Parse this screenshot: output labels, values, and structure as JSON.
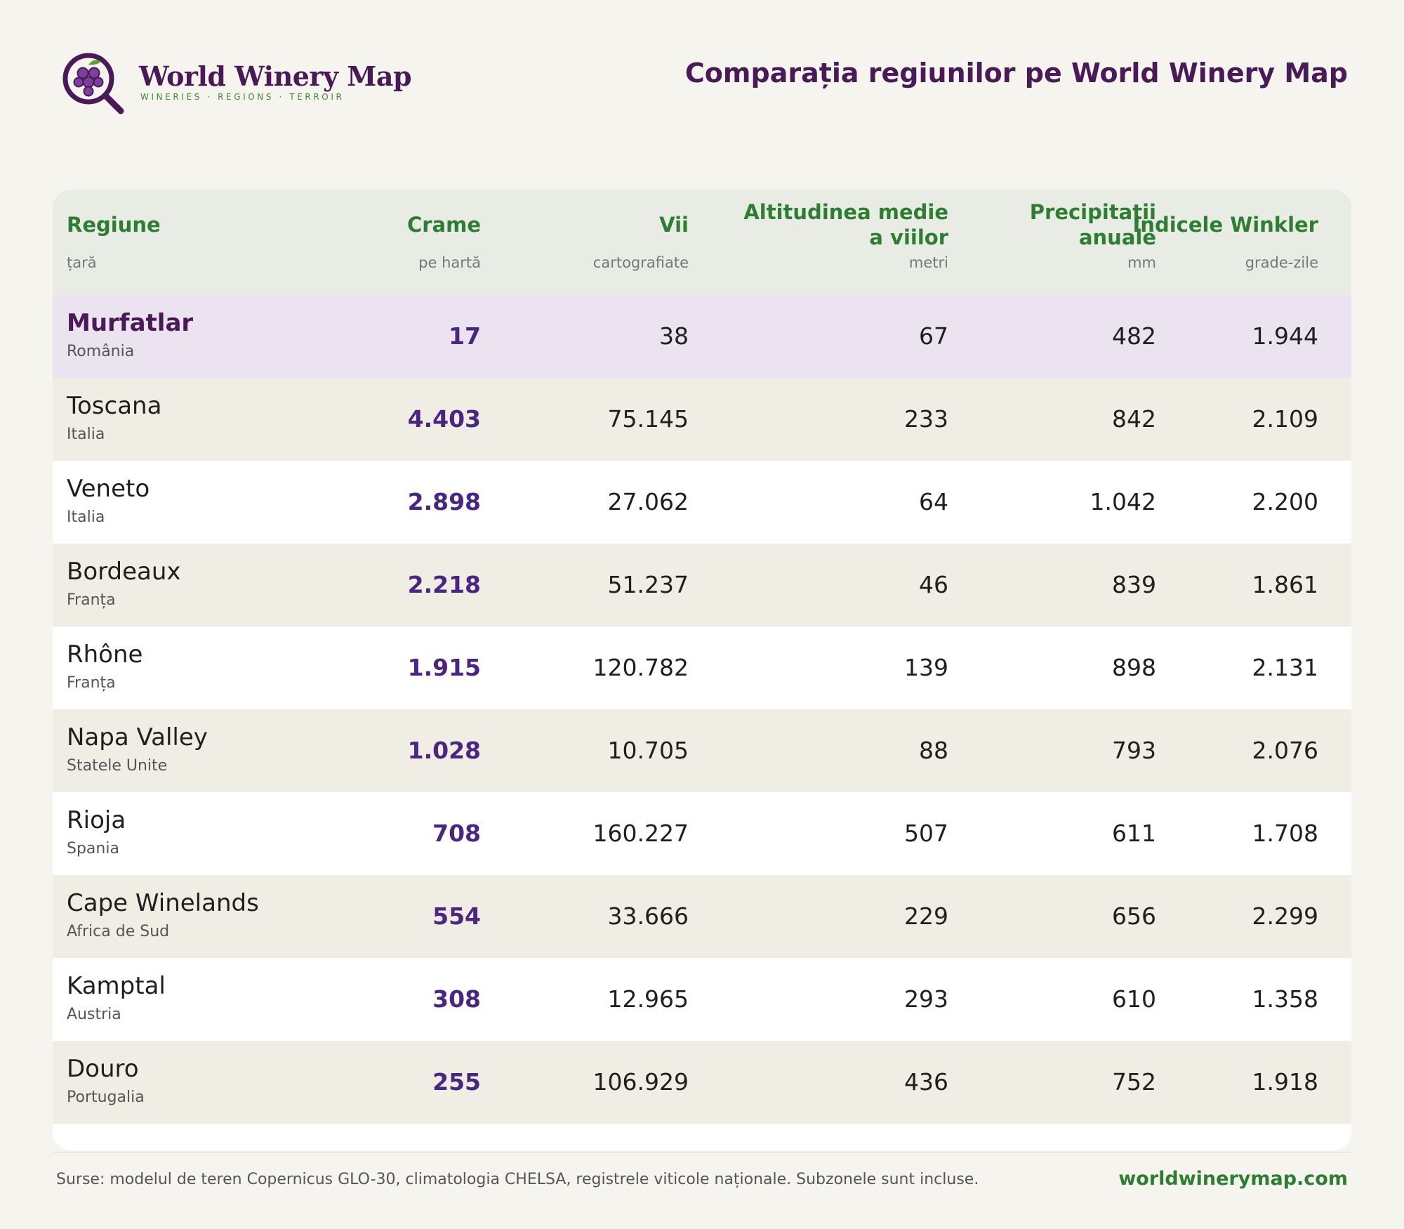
{
  "brand": {
    "name": "World Winery Map",
    "tagline": "WINERIES · REGIONS · TERROIR"
  },
  "title": "Comparația regiunilor pe World Winery Map",
  "colors": {
    "brand_purple": "#4a1a57",
    "accent_green": "#2e7d32",
    "highlight_row": "#ece3f0",
    "alt_row": "#f0ede4",
    "header_bg": "#e8ece4"
  },
  "icons": {
    "logo": "magnifier-grapes-icon"
  },
  "table": {
    "columns": [
      {
        "title": "Regiune",
        "unit": "țară"
      },
      {
        "title": "Crame",
        "unit": "pe hartă"
      },
      {
        "title": "Vii",
        "unit": "cartografiate"
      },
      {
        "title_line1": "Altitudinea medie",
        "title_line2": "a viilor",
        "unit": "metri"
      },
      {
        "title_line1": "Precipitații",
        "title_line2": "anuale",
        "unit": "mm"
      },
      {
        "title": "Indicele Winkler",
        "unit": "grade-zile"
      }
    ],
    "rows": [
      {
        "region": "Murfatlar",
        "country": "România",
        "wineries": "17",
        "vineyards": "38",
        "altitude": "67",
        "precipitation": "482",
        "winkler": "1.944"
      },
      {
        "region": "Toscana",
        "country": "Italia",
        "wineries": "4.403",
        "vineyards": "75.145",
        "altitude": "233",
        "precipitation": "842",
        "winkler": "2.109"
      },
      {
        "region": "Veneto",
        "country": "Italia",
        "wineries": "2.898",
        "vineyards": "27.062",
        "altitude": "64",
        "precipitation": "1.042",
        "winkler": "2.200"
      },
      {
        "region": "Bordeaux",
        "country": "Franța",
        "wineries": "2.218",
        "vineyards": "51.237",
        "altitude": "46",
        "precipitation": "839",
        "winkler": "1.861"
      },
      {
        "region": "Rhône",
        "country": "Franța",
        "wineries": "1.915",
        "vineyards": "120.782",
        "altitude": "139",
        "precipitation": "898",
        "winkler": "2.131"
      },
      {
        "region": "Napa Valley",
        "country": "Statele Unite",
        "wineries": "1.028",
        "vineyards": "10.705",
        "altitude": "88",
        "precipitation": "793",
        "winkler": "2.076"
      },
      {
        "region": "Rioja",
        "country": "Spania",
        "wineries": "708",
        "vineyards": "160.227",
        "altitude": "507",
        "precipitation": "611",
        "winkler": "1.708"
      },
      {
        "region": "Cape Winelands",
        "country": "Africa de Sud",
        "wineries": "554",
        "vineyards": "33.666",
        "altitude": "229",
        "precipitation": "656",
        "winkler": "2.299"
      },
      {
        "region": "Kamptal",
        "country": "Austria",
        "wineries": "308",
        "vineyards": "12.965",
        "altitude": "293",
        "precipitation": "610",
        "winkler": "1.358"
      },
      {
        "region": "Douro",
        "country": "Portugalia",
        "wineries": "255",
        "vineyards": "106.929",
        "altitude": "436",
        "precipitation": "752",
        "winkler": "1.918"
      }
    ]
  },
  "footer": {
    "note": "Surse: modelul de teren Copernicus GLO-30, climatologia CHELSA, registrele viticole naționale. Subzonele sunt incluse.",
    "url": "worldwinerymap.com"
  }
}
